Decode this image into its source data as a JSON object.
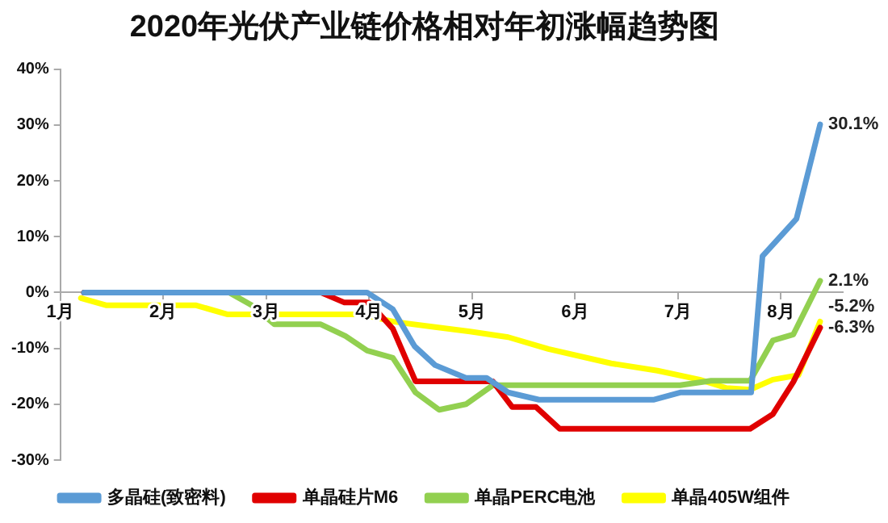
{
  "chart_data": {
    "type": "line",
    "title": "2020年光伏产业链价格相对年初涨幅趋势图",
    "xlim": [
      1,
      8.6
    ],
    "xticks": [
      {
        "value": 1,
        "label": "1月"
      },
      {
        "value": 2,
        "label": "2月"
      },
      {
        "value": 3,
        "label": "3月"
      },
      {
        "value": 4,
        "label": "4月"
      },
      {
        "value": 5,
        "label": "5月"
      },
      {
        "value": 6,
        "label": "6月"
      },
      {
        "value": 7,
        "label": "7月"
      },
      {
        "value": 8,
        "label": "8月"
      }
    ],
    "ylim": [
      -30,
      40
    ],
    "yticks": [
      {
        "value": -30,
        "label": "-30%"
      },
      {
        "value": -20,
        "label": "-20%"
      },
      {
        "value": -10,
        "label": "-10%"
      },
      {
        "value": 0,
        "label": "0%"
      },
      {
        "value": 10,
        "label": "10%"
      },
      {
        "value": 20,
        "label": "20%"
      },
      {
        "value": 30,
        "label": "30%"
      },
      {
        "value": 40,
        "label": "40%"
      }
    ],
    "grid": false,
    "legend": "bottom",
    "marker": "none",
    "line_style": "solid",
    "series": [
      {
        "name": "多晶硅(致密料)",
        "color": "#5b9bd5",
        "x": [
          1.23,
          3.98,
          4.23,
          4.44,
          4.64,
          4.94,
          5.14,
          5.35,
          5.65,
          6.76,
          7.02,
          7.71,
          7.82,
          8.15,
          8.38
        ],
        "values": [
          0,
          0,
          -3,
          -9.6,
          -13,
          -15.3,
          -15.3,
          -17.9,
          -19.2,
          -19.2,
          -17.9,
          -17.9,
          6.5,
          13.2,
          30.1
        ],
        "value_labels": [
          null,
          null,
          null,
          null,
          null,
          null,
          null,
          null,
          null,
          null,
          null,
          null,
          null,
          null,
          "30.1%"
        ]
      },
      {
        "name": "单晶硅片M6",
        "color": "#e00000",
        "x": [
          1.23,
          3.53,
          3.76,
          4.0,
          4.23,
          4.45,
          5.2,
          5.39,
          5.62,
          5.85,
          7.7,
          7.92,
          8.12,
          8.38
        ],
        "values": [
          0,
          0,
          -1.8,
          -1.8,
          -6.5,
          -15.9,
          -15.9,
          -20.5,
          -20.5,
          -24.4,
          -24.4,
          -21.8,
          -16,
          -6.3
        ],
        "value_labels": [
          null,
          null,
          null,
          null,
          null,
          null,
          null,
          null,
          null,
          null,
          null,
          null,
          null,
          "-6.3%"
        ]
      },
      {
        "name": "单晶PERC电池",
        "color": "#92d050",
        "x": [
          1.23,
          2.64,
          2.86,
          3.08,
          3.53,
          3.77,
          3.98,
          4.23,
          4.45,
          4.68,
          4.94,
          5.2,
          7.02,
          7.32,
          7.7,
          7.92,
          8.12,
          8.38
        ],
        "values": [
          0,
          0,
          -2.3,
          -5.7,
          -5.7,
          -7.8,
          -10.4,
          -11.7,
          -17.9,
          -21,
          -20,
          -16.6,
          -16.6,
          -15.8,
          -15.8,
          -8.6,
          -7.5,
          2.1
        ],
        "value_labels": [
          null,
          null,
          null,
          null,
          null,
          null,
          null,
          null,
          null,
          null,
          null,
          null,
          null,
          null,
          null,
          null,
          null,
          "2.1%"
        ]
      },
      {
        "name": "单晶405W组件",
        "color": "#ffff00",
        "x": [
          1.2,
          1.45,
          2.32,
          2.62,
          3.92,
          4.23,
          4.64,
          4.98,
          5.35,
          5.74,
          6.35,
          6.8,
          7.21,
          7.47,
          7.7,
          7.92,
          8.17,
          8.38
        ],
        "values": [
          -1,
          -2.3,
          -2.3,
          -3.9,
          -3.9,
          -5.2,
          -6.2,
          -7,
          -8,
          -10.1,
          -12.7,
          -14,
          -15.6,
          -17.1,
          -17.4,
          -15.6,
          -14.8,
          -5.2
        ],
        "value_labels": [
          null,
          null,
          null,
          null,
          null,
          null,
          null,
          null,
          null,
          null,
          null,
          null,
          null,
          null,
          null,
          null,
          null,
          "-5.2%"
        ]
      }
    ]
  }
}
